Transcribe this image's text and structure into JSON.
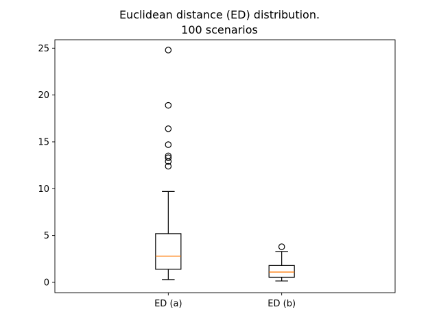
{
  "chart_data": {
    "type": "box",
    "title_lines": [
      "Euclidean distance (ED) distribution.",
      "100 scenarios"
    ],
    "xlabel": "",
    "ylabel": "",
    "ylim": [
      -1.1,
      25.9
    ],
    "yticks": [
      0,
      5,
      10,
      15,
      20,
      25
    ],
    "grid": false,
    "categories": [
      "ED (a)",
      "ED (b)"
    ],
    "boxes": [
      {
        "label": "ED (a)",
        "whisker_low": 0.3,
        "q1": 1.4,
        "median": 2.8,
        "q3": 5.2,
        "whisker_high": 9.7,
        "outliers": [
          12.4,
          12.9,
          13.3,
          13.5,
          14.7,
          16.4,
          18.9,
          24.8
        ]
      },
      {
        "label": "ED (b)",
        "whisker_low": 0.15,
        "q1": 0.55,
        "median": 1.1,
        "q3": 1.8,
        "whisker_high": 3.3,
        "outliers": [
          3.8
        ]
      }
    ],
    "colors": {
      "box": "#000000",
      "median": "#ff7f0e",
      "outlier": "#000000"
    }
  }
}
